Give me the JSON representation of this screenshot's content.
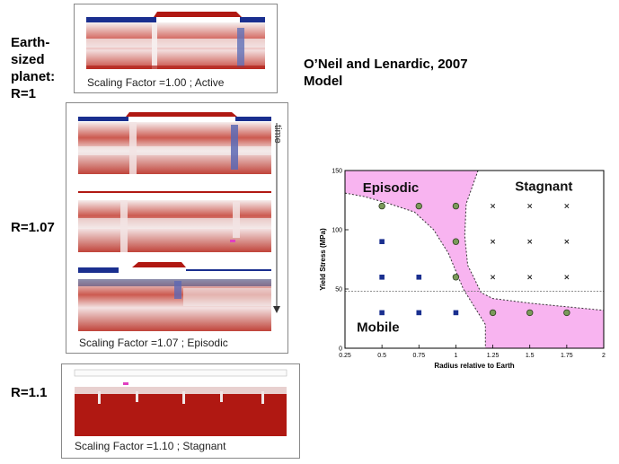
{
  "labels": {
    "earth": [
      "Earth-",
      "sized",
      "planet:",
      "R=1"
    ],
    "r107": "R=1.07",
    "r11": "R=1.1"
  },
  "header": {
    "line1": "O’Neil and Lenardic, 2007",
    "line2": "Model"
  },
  "panels": {
    "cap1": "Scaling Factor =1.00 ; Active",
    "cap2": "Scaling Factor =1.07 ; Episodic",
    "cap3": "Scaling Factor =1.10 ; Stagnant",
    "time_label": "time"
  },
  "colors": {
    "mantle_red": "#b22018",
    "mantle_white": "#f4eeee",
    "lid_blue": "#1a2f8f",
    "plate_red": "#b01812",
    "episodic_pink": "#f8b4f0"
  },
  "chart_data": {
    "type": "scatter",
    "xlabel": "Radius relative to Earth",
    "ylabel": "Yield Stress (MPa)",
    "xlim": [
      0.25,
      2
    ],
    "ylim": [
      0,
      150
    ],
    "x_ticks": [
      "0.25",
      "0.5",
      "0.75",
      "1",
      "1.25",
      "1.5",
      "1.75",
      "2"
    ],
    "y_ticks": [
      "0",
      "50",
      "100",
      "150"
    ],
    "regions": [
      "Episodic",
      "Stagnant",
      "Mobile"
    ],
    "mobile_points": [
      [
        0.5,
        90
      ],
      [
        0.5,
        60
      ],
      [
        0.75,
        60
      ],
      [
        1,
        60
      ],
      [
        0.5,
        30
      ],
      [
        0.75,
        30
      ],
      [
        1,
        30
      ]
    ],
    "episodic_points": [
      [
        0.5,
        120
      ],
      [
        0.75,
        120
      ],
      [
        1,
        120
      ],
      [
        1,
        90
      ],
      [
        1,
        60
      ],
      [
        1.25,
        30
      ],
      [
        1.5,
        30
      ],
      [
        1.75,
        30
      ]
    ],
    "stagnant_points": [
      [
        1.25,
        120
      ],
      [
        1.5,
        120
      ],
      [
        1.75,
        120
      ],
      [
        1.25,
        90
      ],
      [
        1.5,
        90
      ],
      [
        1.75,
        90
      ],
      [
        1.25,
        60
      ],
      [
        1.5,
        60
      ],
      [
        1.75,
        60
      ]
    ],
    "reference_line_y": 48
  }
}
